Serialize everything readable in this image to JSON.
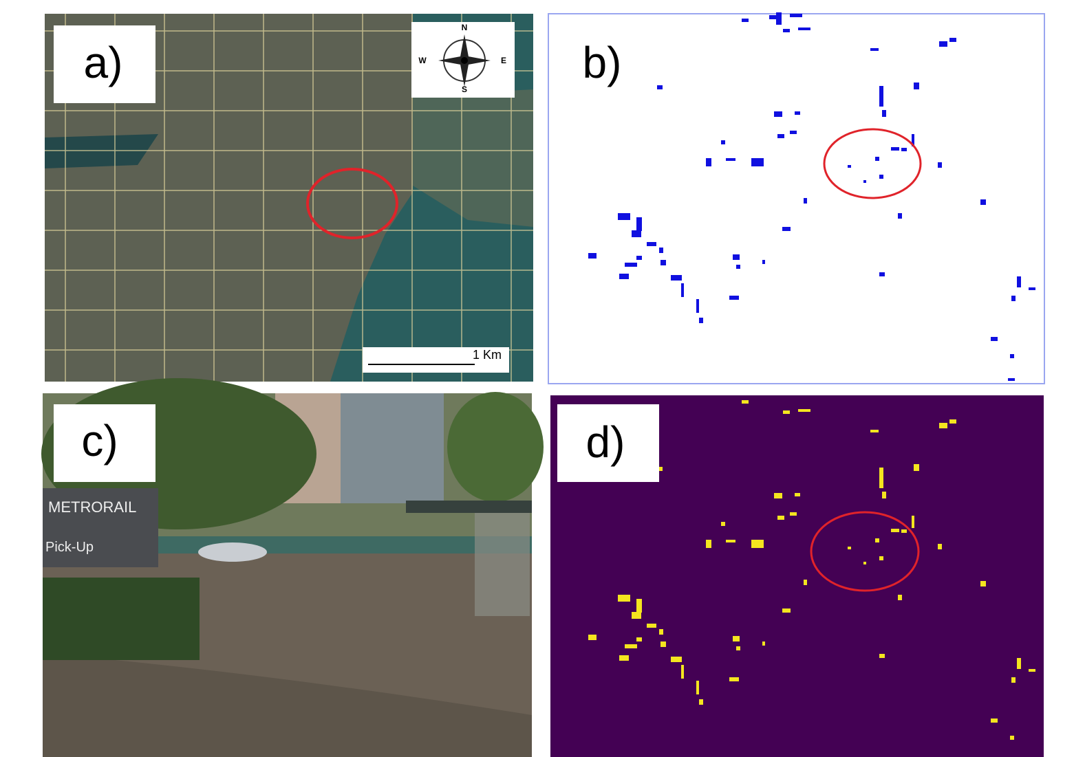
{
  "panels": {
    "a": {
      "label": "a)",
      "compass": {
        "north": "N",
        "south": "S",
        "east": "E",
        "west": "W"
      },
      "scale": "1 Km"
    },
    "b": {
      "label": "b)"
    },
    "c": {
      "label": "c)",
      "sign": {
        "line1": "METRORAIL",
        "line2": "Pick-Up"
      }
    },
    "d": {
      "label": "d)"
    }
  }
}
